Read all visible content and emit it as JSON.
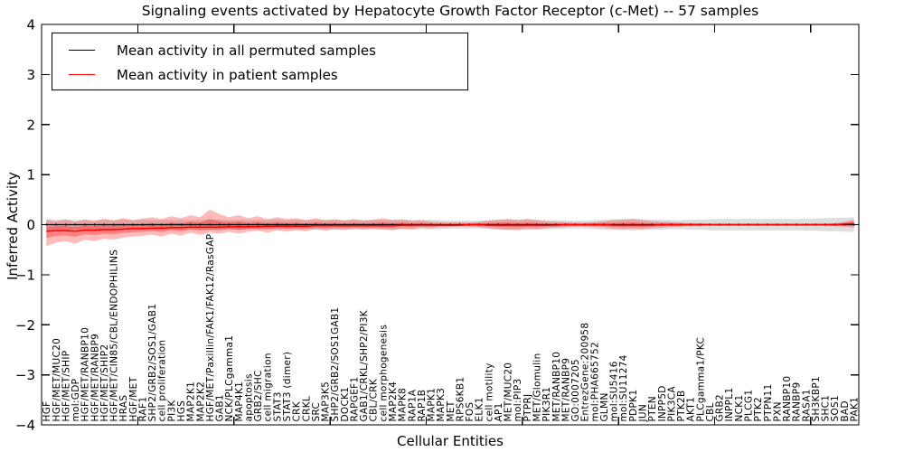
{
  "title": "Signaling events activated by Hepatocyte Growth Factor Receptor (c-Met) -- 57 samples",
  "legend": {
    "items": [
      {
        "label": "Mean activity in all permuted samples",
        "color": "#000000"
      },
      {
        "label": "Mean activity in patient samples",
        "color": "#ff0000"
      }
    ]
  },
  "axes": {
    "ylabel": "Inferred Activity",
    "xlabel": "Cellular Entities",
    "ylim": [
      -4,
      4
    ],
    "ytick_values": [
      4,
      3,
      2,
      1,
      0,
      -1,
      -2,
      -3,
      -4
    ],
    "ytick_labels": [
      "4",
      "3",
      "2",
      "1",
      "0",
      "−1",
      "−2",
      "−3",
      "−4"
    ],
    "x_major_tick_indices": [
      10,
      20,
      30,
      40,
      50,
      60,
      70,
      80
    ]
  },
  "chart_data": {
    "type": "line",
    "title": "Signaling events activated by Hepatocyte Growth Factor Receptor (c-Met) -- 57 samples",
    "xlabel": "Cellular Entities",
    "ylabel": "Inferred Activity",
    "ylim": [
      -4,
      4
    ],
    "grid": false,
    "legend_position": "upper left",
    "categories": [
      "HGF",
      "HGF/MET/MUC20",
      "HGF/MET/SHIP",
      "mol:GDP",
      "HGF/MET/RANBP10",
      "HGF/MET/RANBP9",
      "HGF/MET/SHIP2",
      "HGF/MET/CIN85/CBL/ENDOPHILINS",
      "HRAS",
      "HGF/MET",
      "RAF1",
      "SHP2/GRB2/SOS1/GAB1",
      "cell proliferation",
      "PI3K",
      "HGS",
      "MAP2K1",
      "MAP2K2",
      "HGF/MET/Paxillin/FAK1/FAK12/RasGAP",
      "GAB1",
      "NCK/PLCgamma1",
      "MAP4K1",
      "apoptosis",
      "GRB2/SHC",
      "cell migration",
      "STAT3",
      "STAT3 (dimer)",
      "CRK",
      "CRKL",
      "SRC",
      "MAP3K5",
      "SHP2/GRB2/SOS1GAB1",
      "DOCK1",
      "RAPGEF1",
      "GAB1/CRKL/SHP2/PI3K",
      "CBL/CRK",
      "cell morphogenesis",
      "MAP2K4",
      "MAPK8",
      "RAP1A",
      "RAP1B",
      "MAPK1",
      "MAPK3",
      "MET",
      "RPS6KB1",
      "FOS",
      "ELK1",
      "cell motility",
      "AP1",
      "MET/MUC20",
      "mol:PIP3",
      "PTPRJ",
      "MET/Glomulin",
      "PIK3R1",
      "MET/RANBP10",
      "MET/RANBP9",
      "GO:0007205",
      "EntrezGene:200958",
      "mol:PHA665752",
      "GLMN",
      "mol:SU5416",
      "mol:SU11274",
      "PDPK1",
      "JUN",
      "PTEN",
      "INPP5D",
      "PIK3CA",
      "PTK2B",
      "AKT1",
      "PLCgamma1/PKC",
      "CBL",
      "GRB2",
      "INPPL1",
      "NCK1",
      "PLCG1",
      "PTK2",
      "PTPN11",
      "PXN",
      "RANBP10",
      "RANBP9",
      "RASA1",
      "SH3KBP1",
      "SHC1",
      "SOS1",
      "BAD",
      "PAK1"
    ],
    "series": [
      {
        "name": "Mean activity in all permuted samples",
        "color": "#000000",
        "marker": "point",
        "constant_value": 0.0
      },
      {
        "name": "Mean activity in patient samples",
        "color": "#ff0000",
        "values": [
          -0.13,
          -0.12,
          -0.12,
          -0.13,
          -0.11,
          -0.11,
          -0.1,
          -0.1,
          -0.09,
          -0.08,
          -0.08,
          -0.07,
          -0.07,
          -0.06,
          -0.06,
          -0.05,
          -0.05,
          -0.05,
          -0.05,
          -0.04,
          -0.04,
          -0.04,
          -0.04,
          -0.03,
          -0.03,
          -0.03,
          -0.03,
          -0.03,
          -0.02,
          -0.02,
          -0.02,
          -0.02,
          -0.02,
          -0.02,
          -0.02,
          -0.02,
          -0.02,
          -0.01,
          -0.01,
          -0.01,
          -0.01,
          -0.01,
          -0.01,
          -0.01,
          0,
          0,
          -0.01,
          -0.01,
          -0.01,
          -0.01,
          -0.01,
          -0.01,
          -0.01,
          -0.01,
          0,
          0,
          0,
          0,
          0,
          -0.01,
          -0.01,
          -0.01,
          -0.01,
          -0.01,
          0,
          0,
          0,
          0,
          0,
          0,
          0,
          0,
          0,
          0,
          0,
          0,
          0,
          0,
          0,
          0,
          0,
          0,
          0,
          0.01,
          0.02
        ]
      }
    ],
    "bands": [
      {
        "name": "permuted-samples-spread",
        "color": "rgba(0,0,0,0.13)",
        "center": 0.0,
        "halfwidth": [
          0.12,
          0.1,
          0.11,
          0.09,
          0.1,
          0.09,
          0.1,
          0.09,
          0.1,
          0.09,
          0.1,
          0.09,
          0.1,
          0.09,
          0.1,
          0.09,
          0.1,
          0.11,
          0.1,
          0.09,
          0.1,
          0.09,
          0.1,
          0.09,
          0.1,
          0.09,
          0.1,
          0.09,
          0.1,
          0.09,
          0.1,
          0.09,
          0.1,
          0.09,
          0.1,
          0.09,
          0.1,
          0.09,
          0.1,
          0.09,
          0.1,
          0.09,
          0.08,
          0.08,
          0.08,
          0.08,
          0.09,
          0.1,
          0.11,
          0.1,
          0.11,
          0.1,
          0.09,
          0.09,
          0.08,
          0.08,
          0.08,
          0.09,
          0.1,
          0.11,
          0.11,
          0.12,
          0.11,
          0.1,
          0.1,
          0.09,
          0.09,
          0.1,
          0.1,
          0.11,
          0.11,
          0.12,
          0.11,
          0.12,
          0.11,
          0.12,
          0.11,
          0.12,
          0.11,
          0.12,
          0.12,
          0.13,
          0.13,
          0.14,
          0.15
        ]
      },
      {
        "name": "patient-samples-spread-outer",
        "color": "rgba(255,0,0,0.27)",
        "upper": [
          0.09,
          0.07,
          0.1,
          0.06,
          0.1,
          0.07,
          0.12,
          0.08,
          0.13,
          0.09,
          0.12,
          0.15,
          0.11,
          0.17,
          0.13,
          0.19,
          0.15,
          0.3,
          0.21,
          0.15,
          0.19,
          0.13,
          0.17,
          0.11,
          0.15,
          0.11,
          0.13,
          0.09,
          0.13,
          0.09,
          0.11,
          0.08,
          0.11,
          0.08,
          0.1,
          0.13,
          0.09,
          0.11,
          0.07,
          0.09,
          0.06,
          0.05,
          0.04,
          0.05,
          0.04,
          0.06,
          0.08,
          0.1,
          0.11,
          0.09,
          0.11,
          0.09,
          0.07,
          0.06,
          0.05,
          0.04,
          0.04,
          0.05,
          0.07,
          0.09,
          0.1,
          0.11,
          0.09,
          0.07,
          0.06,
          0.05,
          0.04,
          0.03,
          0.03,
          0.02,
          0.02,
          0.02,
          0.02,
          0.02,
          0.02,
          0.02,
          0.02,
          0.02,
          0.02,
          0.02,
          0.02,
          0.02,
          0.03,
          0.06,
          0.1
        ],
        "lower": [
          -0.43,
          -0.36,
          -0.33,
          -0.38,
          -0.3,
          -0.33,
          -0.28,
          -0.3,
          -0.26,
          -0.24,
          -0.22,
          -0.2,
          -0.24,
          -0.18,
          -0.22,
          -0.16,
          -0.2,
          -0.16,
          -0.18,
          -0.14,
          -0.18,
          -0.14,
          -0.12,
          -0.16,
          -0.11,
          -0.14,
          -0.11,
          -0.13,
          -0.09,
          -0.12,
          -0.09,
          -0.11,
          -0.08,
          -0.1,
          -0.08,
          -0.1,
          -0.11,
          -0.08,
          -0.09,
          -0.06,
          -0.07,
          -0.05,
          -0.05,
          -0.04,
          -0.04,
          -0.05,
          -0.07,
          -0.09,
          -0.1,
          -0.11,
          -0.08,
          -0.09,
          -0.07,
          -0.06,
          -0.05,
          -0.04,
          -0.04,
          -0.05,
          -0.06,
          -0.08,
          -0.09,
          -0.08,
          -0.09,
          -0.07,
          -0.06,
          -0.05,
          -0.04,
          -0.03,
          -0.03,
          -0.02,
          -0.02,
          -0.02,
          -0.02,
          -0.02,
          -0.02,
          -0.02,
          -0.02,
          -0.02,
          -0.02,
          -0.02,
          -0.02,
          -0.02,
          -0.03,
          -0.04,
          -0.06
        ]
      },
      {
        "name": "patient-samples-spread-inner",
        "color": "rgba(255,0,0,0.30)",
        "inner_scale": 0.45
      }
    ]
  }
}
